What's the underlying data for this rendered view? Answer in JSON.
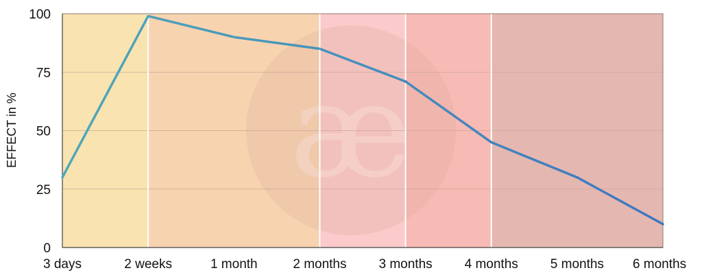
{
  "chart_data": {
    "type": "line",
    "categories": [
      "3 days",
      "2 weeks",
      "1 month",
      "2 months",
      "3 months",
      "4 months",
      "5 months",
      "6 months"
    ],
    "series": [
      {
        "values": [
          30,
          99,
          90,
          85,
          71,
          45,
          30,
          10
        ]
      }
    ],
    "ylabel": "EFFECT in %",
    "xlabel": "",
    "ylim": [
      0,
      100
    ],
    "yticks": [
      0,
      25,
      50,
      75,
      100
    ],
    "grid": true,
    "background_bands": [
      {
        "from": "3 days",
        "to": "2 weeks",
        "color": "#f9e3b0"
      },
      {
        "from": "2 weeks",
        "to": "2 months",
        "color": "#f8d3b0"
      },
      {
        "from": "2 months",
        "to": "3 months",
        "color": "#fbcaca"
      },
      {
        "from": "3 months",
        "to": "4 months",
        "color": "#f8bab4"
      },
      {
        "from": "4 months",
        "to": "6 months",
        "color": "#e5b7b1"
      }
    ],
    "line_colors": {
      "start": "#4fa8b8",
      "end": "#3d76c0"
    },
    "watermark": "æ"
  }
}
